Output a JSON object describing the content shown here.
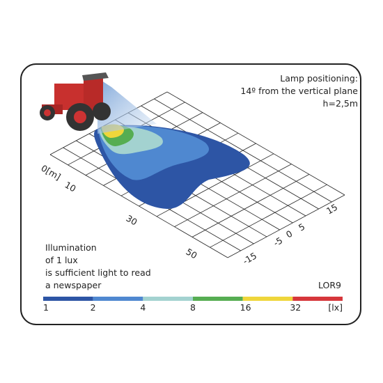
{
  "lamp_note": [
    "Lamp positioning:",
    "14º from the vertical plane",
    "h=2,5m"
  ],
  "distance_labels": [
    "0[m]",
    "10",
    "30",
    "50"
  ],
  "lateral_labels": [
    "15",
    "5",
    "0",
    "-5",
    "-15"
  ],
  "info": [
    "Illumination",
    "of 1 lux",
    "is sufficient light to read",
    "a newspaper"
  ],
  "model": "LOR9",
  "scale": {
    "labels": [
      "1",
      "2",
      "4",
      "8",
      "16",
      "32"
    ],
    "unit": "[lx]",
    "colors": [
      "#2d55a5",
      "#4f88d0",
      "#a3d2d0",
      "#56ad52",
      "#efd63b",
      "#d6373b"
    ]
  }
}
